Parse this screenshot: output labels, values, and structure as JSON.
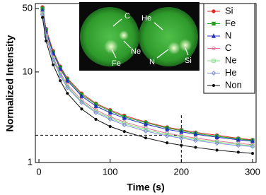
{
  "chart_data": {
    "type": "line",
    "y_label": "Normalized Intensity",
    "x_label": "Time (s)",
    "x": [
      5,
      10,
      20,
      30,
      40,
      60,
      80,
      100,
      120,
      150,
      180,
      200,
      220,
      250,
      280,
      300
    ],
    "series": [
      {
        "name": "Si",
        "color": "#e02828",
        "marker": "circle",
        "values": [
          52,
          30,
          17,
          11.5,
          8.5,
          5.8,
          4.5,
          3.8,
          3.3,
          2.8,
          2.45,
          2.3,
          2.15,
          2.0,
          1.85,
          1.78
        ]
      },
      {
        "name": "Fe",
        "color": "#22a022",
        "marker": "square",
        "values": [
          50,
          29,
          16.5,
          11.2,
          8.3,
          5.6,
          4.4,
          3.7,
          3.2,
          2.75,
          2.4,
          2.25,
          2.1,
          1.95,
          1.82,
          1.75
        ]
      },
      {
        "name": "N",
        "color": "#2030c0",
        "marker": "triangle",
        "values": [
          48,
          28,
          16,
          10.8,
          8,
          5.4,
          4.2,
          3.55,
          3.1,
          2.65,
          2.32,
          2.18,
          2.05,
          1.9,
          1.78,
          1.72
        ]
      },
      {
        "name": "C",
        "color": "#e07090",
        "marker": "open-circle",
        "values": [
          45,
          26,
          14.5,
          9.8,
          7.2,
          4.9,
          3.8,
          3.2,
          2.8,
          2.4,
          2.1,
          1.98,
          1.86,
          1.73,
          1.63,
          1.57
        ]
      },
      {
        "name": "Ne",
        "color": "#7fdc7f",
        "marker": "open-square",
        "values": [
          44,
          25,
          14,
          9.4,
          6.9,
          4.7,
          3.65,
          3.1,
          2.7,
          2.3,
          2.03,
          1.92,
          1.8,
          1.68,
          1.58,
          1.53
        ]
      },
      {
        "name": "He",
        "color": "#8090e0",
        "marker": "open-diamond",
        "values": [
          43,
          24.5,
          13.5,
          9.1,
          6.7,
          4.6,
          3.55,
          3,
          2.6,
          2.22,
          1.97,
          1.86,
          1.75,
          1.63,
          1.54,
          1.5
        ]
      },
      {
        "name": "Non",
        "color": "#111111",
        "marker": "dot",
        "values": [
          40,
          22,
          12,
          8,
          5.8,
          3.9,
          3,
          2.5,
          2.2,
          1.87,
          1.65,
          1.55,
          1.47,
          1.37,
          1.3,
          1.26
        ]
      }
    ],
    "xlim": [
      -5,
      305
    ],
    "xticks": [
      0,
      100,
      200,
      300
    ],
    "ylim": [
      1,
      57
    ],
    "yticks": [
      1,
      10,
      50
    ],
    "log_y": true,
    "reference": {
      "x": 200,
      "y": 2
    },
    "legend": "upper right",
    "inset_labels": [
      "C",
      "Ne",
      "Fe",
      "He",
      "N",
      "Si"
    ]
  }
}
